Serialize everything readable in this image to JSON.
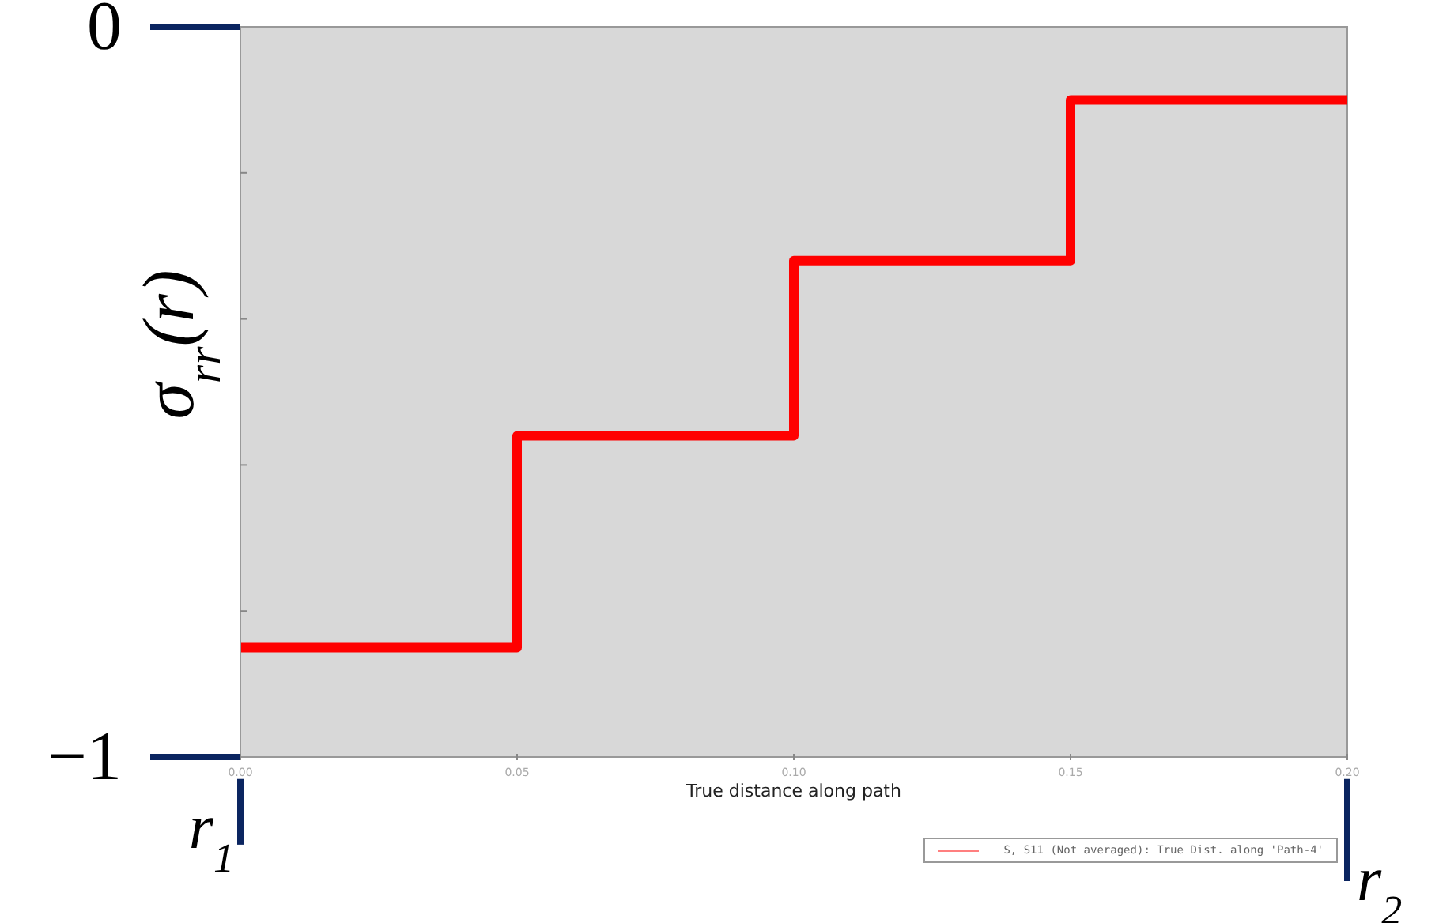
{
  "chart_data": {
    "type": "step",
    "xlabel": "True distance along path",
    "ylabel": "σ$_{rr}$(r)",
    "x": [
      0,
      0.05,
      0.1,
      0.15,
      0.2
    ],
    "series": [
      {
        "name": "S, S11 (Not averaged): True Dist. along 'Path-4'",
        "color": "#ff0000",
        "values": [
          -0.85,
          -0.56,
          -0.32,
          -0.1,
          -0.1
        ]
      }
    ],
    "xlim": [
      0,
      0.2
    ],
    "xticks": [
      {
        "value": 0,
        "label": "0.00"
      },
      {
        "value": 0.05,
        "label": "0.05"
      },
      {
        "value": 0.1,
        "label": "0.10"
      },
      {
        "value": 0.15,
        "label": "0.15"
      },
      {
        "value": 0.2,
        "label": "0.20"
      }
    ],
    "ylim": [
      -1,
      0
    ],
    "yticks": [
      {
        "value": -1,
        "label": "−1"
      },
      {
        "value": -0.8,
        "label": null
      },
      {
        "value": -0.6,
        "label": null
      },
      {
        "value": -0.4,
        "label": null
      },
      {
        "value": -0.2,
        "label": null
      },
      {
        "value": 0,
        "label": "0"
      }
    ],
    "annotations": [
      "r$_{1}$",
      "r$_{2}$"
    ],
    "legend": "bottom right",
    "marker": "none",
    "line_style": "solid"
  }
}
